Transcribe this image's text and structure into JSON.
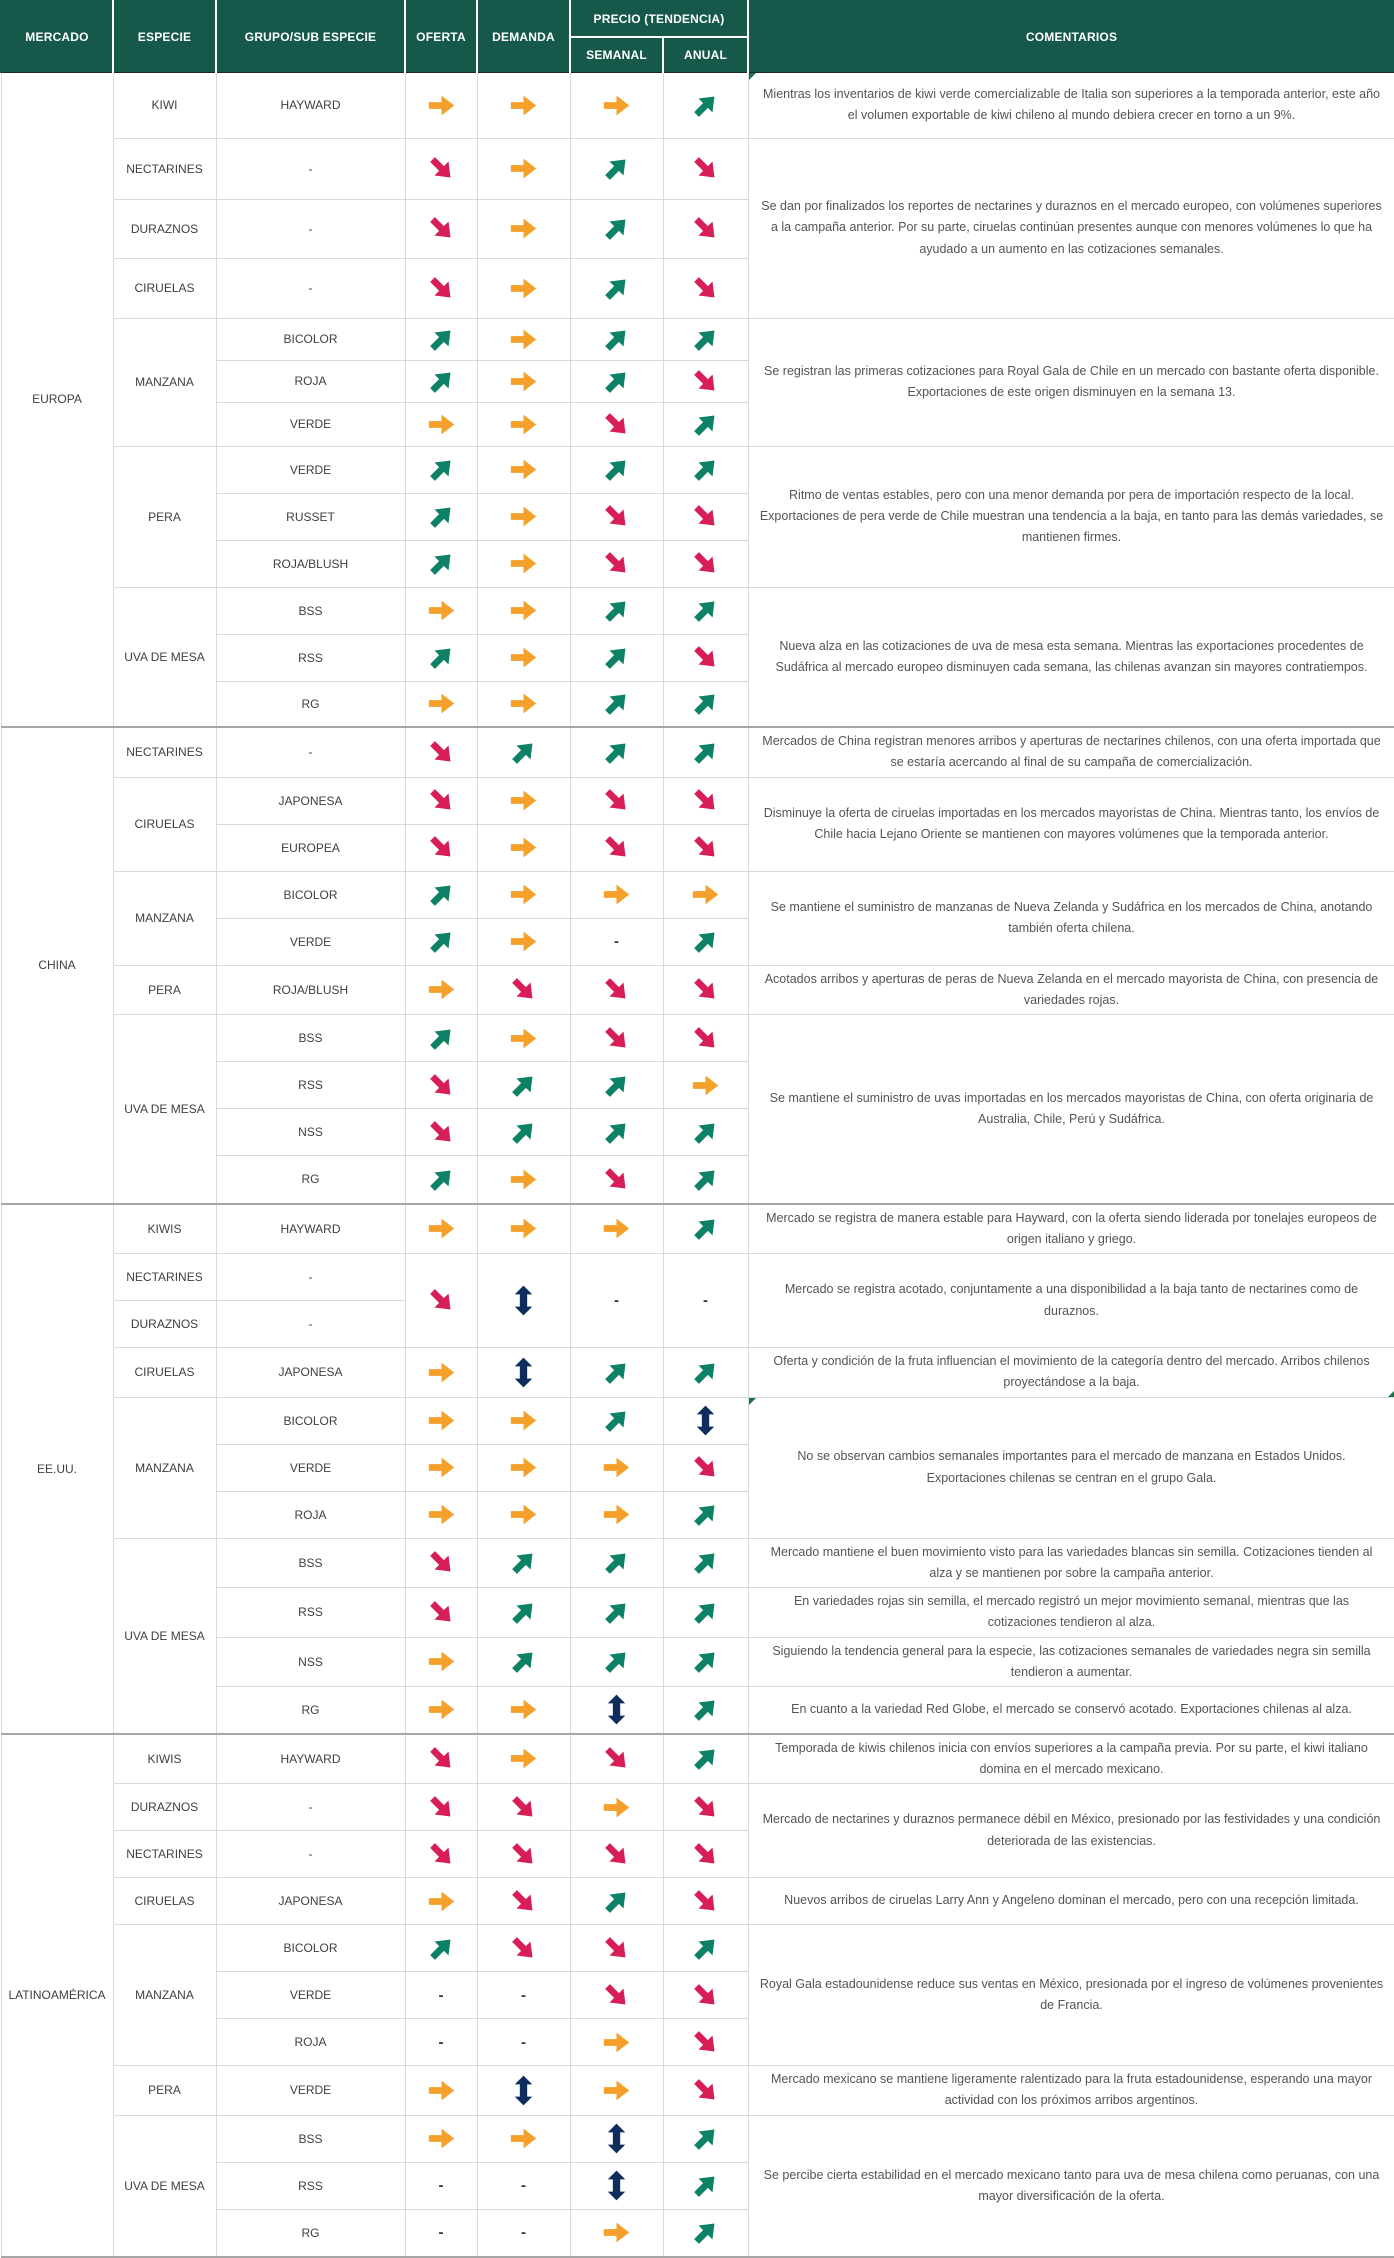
{
  "header": {
    "mercado": "MERCADO",
    "especie": "ESPECIE",
    "grupo": "GRUPO/SUB ESPECIE",
    "oferta": "OFERTA",
    "demanda": "DEMANDA",
    "precio": "PRECIO (TENDENCIA)",
    "semanal": "SEMANAL",
    "anual": "ANUAL",
    "comentarios": "COMENTARIOS"
  },
  "colors": {
    "header_bg": "#16594B",
    "header_text": "#FFFFFF",
    "flat": "#F5A02B",
    "up": "#0E8266",
    "down": "#D81E56",
    "mixed": "#0F2D5C",
    "flag_green": "#1E7145"
  },
  "trend_legend": {
    "up": "alza",
    "down": "baja",
    "flat": "estable",
    "mixed": "mixto",
    "none": "-"
  },
  "markets": [
    {
      "name": "EUROPA",
      "rows": [
        {
          "species": {
            "label": "KIWI",
            "span": 1
          },
          "sub": "HAYWARD",
          "arrows": [
            "flat",
            "flat",
            "flat",
            "up"
          ],
          "comment": {
            "span": 1,
            "flag": "tl",
            "text": "Mientras los inventarios de kiwi verde comercializable de Italia son superiores a la temporada anterior, este año el volumen exportable de kiwi chileno al mundo debiera crecer en torno a un 9%."
          }
        },
        {
          "species": {
            "label": "NECTARINES",
            "span": 1
          },
          "sub": "-",
          "arrows": [
            "down",
            "flat",
            "up",
            "down"
          ],
          "comment": {
            "span": 3,
            "text": "Se dan por finalizados los reportes de nectarines y duraznos en el mercado europeo, con volúmenes superiores a la campaña anterior. Por su parte, ciruelas continúan presentes aunque con menores volúmenes lo que ha ayudado a un aumento en las cotizaciones semanales."
          }
        },
        {
          "species": {
            "label": "DURAZNOS",
            "span": 1
          },
          "sub": "-",
          "arrows": [
            "down",
            "flat",
            "up",
            "down"
          ]
        },
        {
          "species": {
            "label": "CIRUELAS",
            "span": 1
          },
          "sub": "-",
          "arrows": [
            "down",
            "flat",
            "up",
            "down"
          ]
        },
        {
          "species": {
            "label": "MANZANA",
            "span": 3
          },
          "sub": "BICOLOR",
          "arrows": [
            "up",
            "flat",
            "up",
            "up"
          ],
          "comment": {
            "span": 3,
            "text": "Se registran las primeras cotizaciones para Royal Gala de Chile en un mercado con bastante oferta disponible. Exportaciones de este origen disminuyen en la semana 13."
          }
        },
        {
          "sub": "ROJA",
          "arrows": [
            "up",
            "flat",
            "up",
            "down"
          ]
        },
        {
          "sub": "VERDE",
          "arrows": [
            "flat",
            "flat",
            "down",
            "up"
          ]
        },
        {
          "species": {
            "label": "PERA",
            "span": 3
          },
          "sub": "VERDE",
          "arrows": [
            "up",
            "flat",
            "up",
            "up"
          ],
          "comment": {
            "span": 3,
            "text": "Ritmo de ventas estables, pero con una menor demanda por pera de importación respecto de la local. Exportaciones de pera verde de Chile muestran una tendencia a la baja, en tanto para las demás variedades, se mantienen firmes."
          }
        },
        {
          "sub": "RUSSET",
          "arrows": [
            "up",
            "flat",
            "down",
            "down"
          ]
        },
        {
          "sub": "ROJA/BLUSH",
          "arrows": [
            "up",
            "flat",
            "down",
            "down"
          ]
        },
        {
          "species": {
            "label": "UVA DE MESA",
            "span": 3
          },
          "sub": "BSS",
          "arrows": [
            "flat",
            "flat",
            "up",
            "up"
          ],
          "comment": {
            "span": 3,
            "text": "Nueva alza en las cotizaciones de uva de mesa esta semana. Mientras las exportaciones procedentes de Sudáfrica al mercado europeo disminuyen cada semana, las chilenas avanzan sin mayores contratiempos."
          }
        },
        {
          "sub": "RSS",
          "arrows": [
            "up",
            "flat",
            "up",
            "down"
          ]
        },
        {
          "sub": "RG",
          "arrows": [
            "flat",
            "flat",
            "up",
            "up"
          ]
        }
      ]
    },
    {
      "name": "CHINA",
      "rows": [
        {
          "species": {
            "label": "NECTARINES",
            "span": 1
          },
          "sub": "-",
          "arrows": [
            "down",
            "up",
            "up",
            "up"
          ],
          "comment": {
            "span": 1,
            "text": "Mercados de China registran menores arribos y aperturas de nectarines chilenos, con una oferta importada que se estaría acercando al final de su campaña de comercialización."
          }
        },
        {
          "species": {
            "label": "CIRUELAS",
            "span": 2
          },
          "sub": "JAPONESA",
          "arrows": [
            "down",
            "flat",
            "down",
            "down"
          ],
          "comment": {
            "span": 2,
            "text": "Disminuye la oferta de ciruelas importadas en los mercados mayoristas de China. Mientras tanto, los envíos de Chile hacia Lejano Oriente se mantienen con mayores volúmenes que la temporada anterior."
          }
        },
        {
          "sub": "EUROPEA",
          "arrows": [
            "down",
            "flat",
            "down",
            "down"
          ]
        },
        {
          "species": {
            "label": "MANZANA",
            "span": 2
          },
          "sub": "BICOLOR",
          "arrows": [
            "up",
            "flat",
            "flat",
            "flat"
          ],
          "comment": {
            "span": 2,
            "text": "Se mantiene el suministro de manzanas de Nueva Zelanda y Sudáfrica en los mercados de China, anotando también oferta chilena."
          }
        },
        {
          "sub": "VERDE",
          "arrows": [
            "up",
            "flat",
            "none",
            "up"
          ]
        },
        {
          "species": {
            "label": "PERA",
            "span": 1
          },
          "sub": "ROJA/BLUSH",
          "arrows": [
            "flat",
            "down",
            "down",
            "down"
          ],
          "comment": {
            "span": 1,
            "text": "Acotados arribos y aperturas de peras de Nueva Zelanda en el mercado mayorista de China, con presencia de variedades rojas."
          }
        },
        {
          "species": {
            "label": "UVA DE MESA",
            "span": 4
          },
          "sub": "BSS",
          "arrows": [
            "up",
            "flat",
            "down",
            "down"
          ],
          "comment": {
            "span": 4,
            "text": "Se mantiene el suministro de uvas importadas en los mercados mayoristas de China, con oferta originaria de Australia, Chile, Perú y Sudáfrica."
          }
        },
        {
          "sub": "RSS",
          "arrows": [
            "down",
            "up",
            "up",
            "flat"
          ]
        },
        {
          "sub": "NSS",
          "arrows": [
            "down",
            "up",
            "up",
            "up"
          ]
        },
        {
          "sub": "RG",
          "arrows": [
            "up",
            "flat",
            "down",
            "up"
          ]
        }
      ]
    },
    {
      "name": "EE.UU.",
      "rows": [
        {
          "species": {
            "label": "KIWIS",
            "span": 1
          },
          "sub": "HAYWARD",
          "arrows": [
            "flat",
            "flat",
            "flat",
            "up"
          ],
          "comment": {
            "span": 1,
            "text": "Mercado se registra de manera estable para Hayward, con la oferta siendo liderada por tonelajes europeos de origen italiano y griego."
          }
        },
        {
          "species": {
            "label": "NECTARINES",
            "span": 1
          },
          "sub": "-",
          "arrows": [
            "down",
            "mixed",
            "none",
            "none"
          ],
          "arrows_span": 2,
          "comment": {
            "span": 2,
            "text": "Mercado se registra acotado, conjuntamente a una disponibilidad a la baja tanto de nectarines como de duraznos."
          }
        },
        {
          "species": {
            "label": "DURAZNOS",
            "span": 1
          },
          "sub": "-",
          "arrows": null
        },
        {
          "species": {
            "label": "CIRUELAS",
            "span": 1
          },
          "sub": "JAPONESA",
          "arrows": [
            "flat",
            "mixed",
            "up",
            "up"
          ],
          "comment": {
            "span": 1,
            "flag": "br",
            "text": "Oferta y condición de la fruta influencian el movimiento de la categoría dentro del mercado. Arribos chilenos proyectándose a la baja."
          }
        },
        {
          "species": {
            "label": "MANZANA",
            "span": 3
          },
          "sub": "BICOLOR",
          "arrows": [
            "flat",
            "flat",
            "up",
            "mixed"
          ],
          "comment": {
            "span": 3,
            "flag": "tl",
            "text": "No se observan cambios semanales importantes para el mercado de manzana en Estados Unidos. Exportaciones chilenas se centran en el grupo Gala."
          }
        },
        {
          "sub": "VERDE",
          "arrows": [
            "flat",
            "flat",
            "flat",
            "down"
          ]
        },
        {
          "sub": "ROJA",
          "arrows": [
            "flat",
            "flat",
            "flat",
            "up"
          ]
        },
        {
          "species": {
            "label": "UVA DE MESA",
            "span": 4
          },
          "sub": "BSS",
          "arrows": [
            "down",
            "up",
            "up",
            "up"
          ],
          "comment": {
            "span": 1,
            "text": "Mercado mantiene el buen movimiento visto para las variedades blancas sin semilla. Cotizaciones tienden al alza y se mantienen por sobre la campaña anterior."
          }
        },
        {
          "sub": "RSS",
          "arrows": [
            "down",
            "up",
            "up",
            "up"
          ],
          "comment": {
            "span": 1,
            "text": "En variedades rojas sin semilla, el mercado registró un mejor movimiento semanal, mientras que las cotizaciones tendieron al alza."
          }
        },
        {
          "sub": "NSS",
          "arrows": [
            "flat",
            "up",
            "up",
            "up"
          ],
          "comment": {
            "span": 1,
            "text": "Siguiendo la tendencia general para la especie, las cotizaciones semanales de variedades negra sin semilla tendieron a aumentar."
          }
        },
        {
          "sub": "RG",
          "arrows": [
            "flat",
            "flat",
            "mixed",
            "up"
          ],
          "comment": {
            "span": 1,
            "text": "En cuanto a la variedad Red Globe, el mercado se conservó acotado. Exportaciones chilenas al alza."
          }
        }
      ]
    },
    {
      "name": "LATINOAMÉRICA",
      "rows": [
        {
          "species": {
            "label": "KIWIS",
            "span": 1
          },
          "sub": "HAYWARD",
          "arrows": [
            "down",
            "flat",
            "down",
            "up"
          ],
          "comment": {
            "span": 1,
            "text": "Temporada de kiwis chilenos inicia con envíos superiores a la campaña previa. Por su parte, el kiwi italiano domina en el mercado mexicano."
          }
        },
        {
          "species": {
            "label": "DURAZNOS",
            "span": 1
          },
          "sub": "-",
          "arrows": [
            "down",
            "down",
            "flat",
            "down"
          ],
          "comment": {
            "span": 2,
            "text": "Mercado de nectarines y duraznos permanece débil en México, presionado por las festividades y una condición deteriorada de las existencias."
          }
        },
        {
          "species": {
            "label": "NECTARINES",
            "span": 1
          },
          "sub": "-",
          "arrows": [
            "down",
            "down",
            "down",
            "down"
          ]
        },
        {
          "species": {
            "label": "CIRUELAS",
            "span": 1
          },
          "sub": "JAPONESA",
          "arrows": [
            "flat",
            "down",
            "up",
            "down"
          ],
          "comment": {
            "span": 1,
            "text": "Nuevos arribos de ciruelas Larry Ann y Angeleno dominan el mercado, pero con una recepción limitada."
          }
        },
        {
          "species": {
            "label": "MANZANA",
            "span": 3
          },
          "sub": "BICOLOR",
          "arrows": [
            "up",
            "down",
            "down",
            "up"
          ],
          "comment": {
            "span": 3,
            "text": "Royal Gala estadounidense reduce sus ventas en México, presionada por el ingreso de volúmenes provenientes de Francia."
          }
        },
        {
          "sub": "VERDE",
          "arrows": [
            "none",
            "none",
            "down",
            "down"
          ]
        },
        {
          "sub": "ROJA",
          "arrows": [
            "none",
            "none",
            "flat",
            "down"
          ]
        },
        {
          "species": {
            "label": "PERA",
            "span": 1
          },
          "sub": "VERDE",
          "arrows": [
            "flat",
            "mixed",
            "flat",
            "down"
          ],
          "comment": {
            "span": 1,
            "text": "Mercado mexicano se mantiene ligeramente ralentizado para la fruta estadounidense, esperando una mayor actividad con los próximos arribos argentinos."
          }
        },
        {
          "species": {
            "label": "UVA DE MESA",
            "span": 3
          },
          "sub": "BSS",
          "arrows": [
            "flat",
            "flat",
            "mixed",
            "up"
          ],
          "comment": {
            "span": 3,
            "text": "Se percibe cierta estabilidad en el mercado mexicano tanto para uva de mesa chilena como peruanas, con una mayor diversificación de la oferta."
          }
        },
        {
          "sub": "RSS",
          "arrows": [
            "none",
            "none",
            "mixed",
            "up"
          ]
        },
        {
          "sub": "RG",
          "arrows": [
            "none",
            "none",
            "flat",
            "up"
          ]
        }
      ]
    }
  ]
}
